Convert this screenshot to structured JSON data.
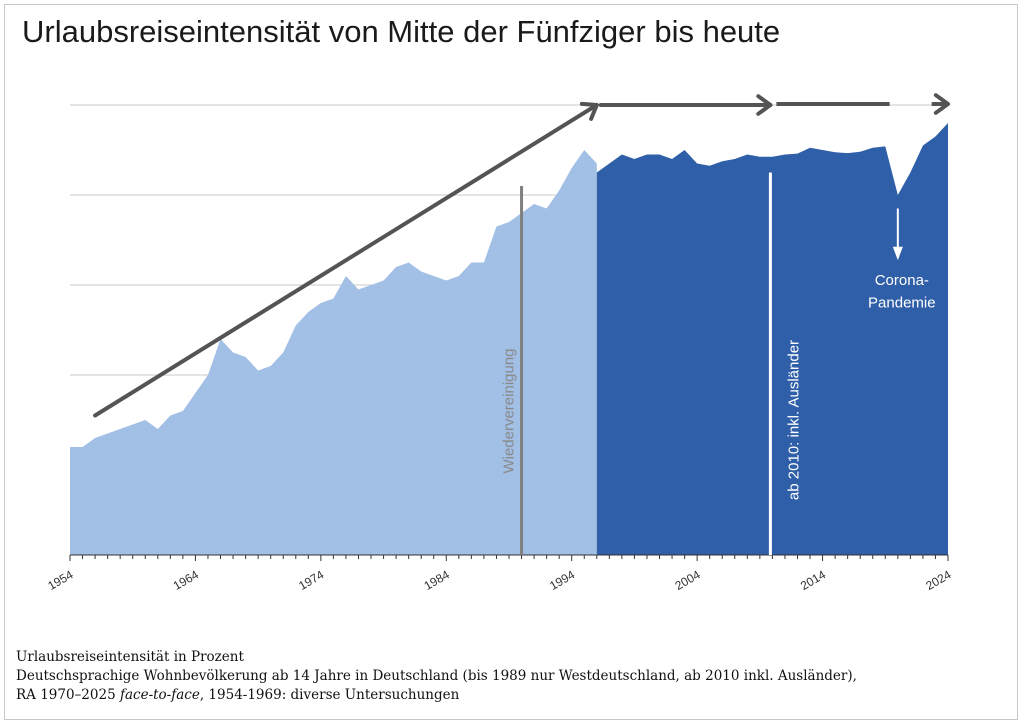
{
  "title": "Urlaubsreiseintensität von Mitte der Fünfziger bis heute",
  "footer": {
    "line1": "Urlaubsreiseintensität in Prozent",
    "line2": "Deutschsprachige Wohnbevölkerung ab 14 Jahre in Deutschland (bis 1989 nur Westdeutschland, ab 2010 inkl. Ausländer),",
    "line3_a": "RA 1970–2025 ",
    "line3_b": "face-to-face",
    "line3_c": ", 1954-1969: diverse Untersuchungen"
  },
  "colors": {
    "light_area": "#a2bfe6",
    "dark_area": "#2f5fa8",
    "arrow": "#545454",
    "grid": "#c9c9c9",
    "reunification_line": "#808080"
  },
  "chart_data": {
    "type": "area",
    "title": "Urlaubsreiseintensität von Mitte der Fünfziger bis heute",
    "xlabel": "",
    "ylabel": "",
    "xlim": [
      1954,
      2024
    ],
    "ylim": [
      0,
      100
    ],
    "grid": true,
    "x_ticks": [
      "1954",
      "1964",
      "1974",
      "1984",
      "1994",
      "2004",
      "2014",
      "2024"
    ],
    "series": [
      {
        "x": [
          1954,
          1955,
          1956,
          1957,
          1958,
          1959,
          1960,
          1961,
          1962,
          1963,
          1964,
          1965,
          1966,
          1967,
          1968,
          1969,
          1970,
          1971,
          1972,
          1973,
          1974,
          1975,
          1976,
          1977,
          1978,
          1979,
          1980,
          1981,
          1982,
          1983,
          1984,
          1985,
          1986,
          1987,
          1988,
          1989,
          1990,
          1991,
          1992,
          1993,
          1994,
          1995,
          1996
        ],
        "values": [
          24,
          24,
          26,
          27,
          28,
          29,
          30,
          28,
          31,
          32,
          36,
          40,
          48,
          45,
          44,
          41,
          42,
          45,
          51,
          54,
          56,
          57,
          62,
          59,
          60,
          61,
          64,
          65,
          63,
          62,
          61,
          62,
          65,
          65,
          73,
          74,
          76,
          78,
          77,
          81,
          86,
          90,
          87
        ]
      },
      {
        "x": [
          1996,
          1997,
          1998,
          1999,
          2000,
          2001,
          2002,
          2003,
          2004,
          2005,
          2006,
          2007,
          2008,
          2009,
          2010,
          2011,
          2012,
          2013,
          2014,
          2015,
          2016,
          2017,
          2018,
          2019,
          2020,
          2021,
          2022,
          2023,
          2024
        ],
        "values": [
          85,
          87,
          89,
          88,
          89,
          89,
          88,
          90,
          87,
          86.5,
          87.5,
          88,
          89,
          88.5,
          88.5,
          89,
          89.2,
          90.5,
          90,
          89.5,
          89.3,
          89.6,
          90.5,
          90.8,
          80,
          85,
          91,
          93,
          96
        ]
      }
    ],
    "trend_arrows": [
      {
        "x": [
          1956,
          1996
        ],
        "y": [
          31,
          100
        ]
      },
      {
        "x": [
          1996,
          2010
        ],
        "y": [
          100,
          100
        ]
      },
      {
        "x": [
          2010,
          2024
        ],
        "y": [
          100,
          100
        ]
      }
    ],
    "annotations": [
      {
        "text": "Wiedervereinigung",
        "x": 1990
      },
      {
        "text": "ab 2010: inkl. Ausländer",
        "x": 2010
      },
      {
        "text": "Corona-",
        "x": 2020
      },
      {
        "text": "Pandemie",
        "x": 2020
      }
    ]
  }
}
